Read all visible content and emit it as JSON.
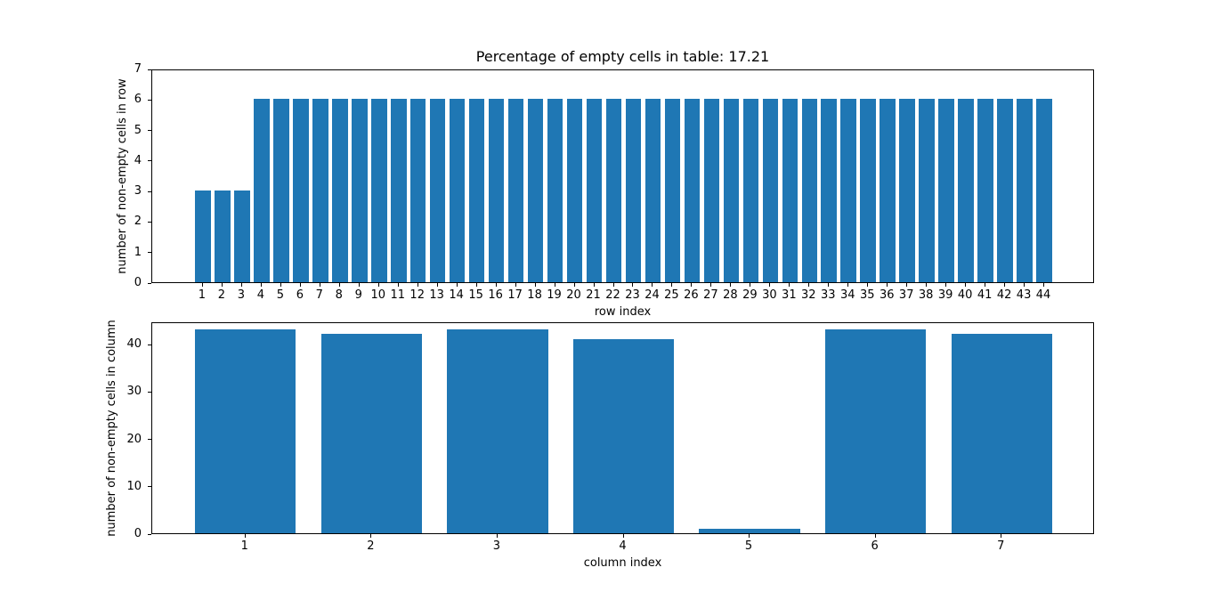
{
  "figure": {
    "background": "#ffffff",
    "bar_color": "#1f77b4",
    "spine_color": "#000000"
  },
  "chart_data": [
    {
      "type": "bar",
      "name": "non-empty-cells-per-row",
      "title": "Percentage of empty cells in table: 17.21",
      "xlabel": "row index",
      "ylabel": "number of non-empty cells in row",
      "categories": [
        1,
        2,
        3,
        4,
        5,
        6,
        7,
        8,
        9,
        10,
        11,
        12,
        13,
        14,
        15,
        16,
        17,
        18,
        19,
        20,
        21,
        22,
        23,
        24,
        25,
        26,
        27,
        28,
        29,
        30,
        31,
        32,
        33,
        34,
        35,
        36,
        37,
        38,
        39,
        40,
        41,
        42,
        43,
        44
      ],
      "values": [
        3,
        3,
        3,
        6,
        6,
        6,
        6,
        6,
        6,
        6,
        6,
        6,
        6,
        6,
        6,
        6,
        6,
        6,
        6,
        6,
        6,
        6,
        6,
        6,
        6,
        6,
        6,
        6,
        6,
        6,
        6,
        6,
        6,
        6,
        6,
        6,
        6,
        6,
        6,
        6,
        6,
        6,
        6,
        6
      ],
      "bar_width": 0.8,
      "xlim": [
        -1.59,
        46.59
      ],
      "ylim": [
        0,
        7
      ],
      "yticks": [
        0,
        1,
        2,
        3,
        4,
        5,
        6,
        7
      ],
      "grid": false,
      "legend": "none"
    },
    {
      "type": "bar",
      "name": "non-empty-cells-per-column",
      "title": "",
      "xlabel": "column index",
      "ylabel": "number of non-empty cells in column",
      "categories": [
        1,
        2,
        3,
        4,
        5,
        6,
        7
      ],
      "values": [
        43,
        42,
        43,
        41,
        1,
        43,
        42
      ],
      "bar_width": 0.8,
      "xlim": [
        0.26,
        7.74
      ],
      "ylim": [
        0,
        44.7
      ],
      "yticks": [
        0,
        10,
        20,
        30,
        40
      ],
      "grid": false,
      "legend": "none"
    }
  ]
}
